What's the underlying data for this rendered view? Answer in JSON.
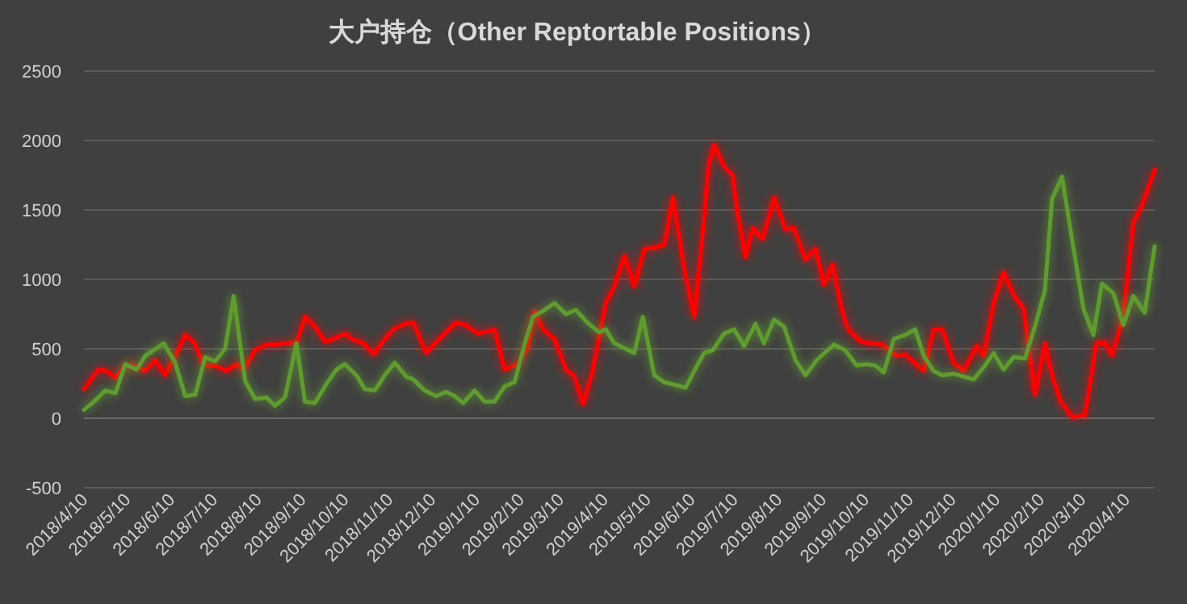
{
  "chart_data": {
    "type": "line",
    "title": "大户持仓（Other Reptortable Positions）",
    "series": [
      {
        "color": "#ff0000",
        "x": [
          "2018-04-10",
          "2018-04-20",
          "2018-04-26",
          "2018-05-02",
          "2018-05-09",
          "2018-05-15",
          "2018-05-23",
          "2018-05-30",
          "2018-06-06",
          "2018-06-13",
          "2018-06-20",
          "2018-06-26",
          "2018-07-03",
          "2018-07-11",
          "2018-07-19",
          "2018-07-26",
          "2018-07-31",
          "2018-08-08",
          "2018-08-16",
          "2018-08-22",
          "2018-08-29",
          "2018-09-06",
          "2018-09-12",
          "2018-09-19",
          "2018-09-26",
          "2018-10-02",
          "2018-10-10",
          "2018-10-15",
          "2018-10-23",
          "2018-10-30",
          "2018-11-07",
          "2018-11-13",
          "2018-11-21",
          "2018-11-27",
          "2018-12-06",
          "2018-12-13",
          "2018-12-20",
          "2018-12-27",
          "2019-01-03",
          "2019-01-11",
          "2019-01-20",
          "2019-01-23",
          "2019-01-30",
          "2019-02-08",
          "2019-02-15",
          "2019-02-20",
          "2019-02-26",
          "2019-03-06",
          "2019-03-14",
          "2019-03-20",
          "2019-03-26",
          "2019-04-01",
          "2019-04-11",
          "2019-04-17",
          "2019-04-24",
          "2019-05-01",
          "2019-05-08",
          "2019-05-16",
          "2019-05-22",
          "2019-05-28",
          "2019-06-05",
          "2019-06-12",
          "2019-06-18",
          "2019-06-22",
          "2019-06-26",
          "2019-07-03",
          "2019-07-09",
          "2019-07-12",
          "2019-07-18",
          "2019-07-23",
          "2019-07-30",
          "2019-08-07",
          "2019-08-15",
          "2019-08-21",
          "2019-08-29",
          "2019-09-05",
          "2019-09-11",
          "2019-09-17",
          "2019-09-24",
          "2019-09-28",
          "2019-10-07",
          "2019-10-22",
          "2019-11-01",
          "2019-11-07",
          "2019-11-20",
          "2019-11-27",
          "2019-12-03",
          "2019-12-11",
          "2019-12-18",
          "2019-12-27",
          "2020-01-01",
          "2020-01-08",
          "2020-01-15",
          "2020-01-23",
          "2020-01-29",
          "2020-02-06",
          "2020-02-13",
          "2020-02-18",
          "2020-02-24",
          "2020-03-03",
          "2020-03-12",
          "2020-03-20",
          "2020-03-26",
          "2020-03-31",
          "2020-04-08",
          "2020-04-15",
          "2020-04-21",
          "2020-04-30"
        ],
        "values": [
          210,
          350,
          340,
          290,
          380,
          380,
          340,
          420,
          310,
          450,
          600,
          550,
          380,
          380,
          340,
          390,
          350,
          490,
          530,
          530,
          540,
          540,
          730,
          660,
          550,
          570,
          610,
          570,
          540,
          460,
          570,
          640,
          680,
          690,
          470,
          550,
          620,
          690,
          670,
          610,
          630,
          640,
          350,
          390,
          500,
          770,
          640,
          570,
          350,
          300,
          100,
          310,
          830,
          950,
          1170,
          950,
          1220,
          1230,
          1250,
          1590,
          1080,
          730,
          1340,
          1820,
          1970,
          1810,
          1750,
          1500,
          1160,
          1370,
          1290,
          1590,
          1360,
          1370,
          1140,
          1220,
          960,
          1110,
          760,
          640,
          550,
          530,
          450,
          460,
          340,
          640,
          640,
          400,
          340,
          520,
          450,
          830,
          1050,
          870,
          790,
          170,
          540,
          310,
          120,
          10,
          20,
          540,
          550,
          450,
          740,
          1410,
          1530,
          1790
        ]
      },
      {
        "color": "#5f9b2e",
        "x": [
          "2018-04-10",
          "2018-04-17",
          "2018-04-25",
          "2018-05-02",
          "2018-05-09",
          "2018-05-17",
          "2018-05-23",
          "2018-06-05",
          "2018-06-13",
          "2018-06-20",
          "2018-06-27",
          "2018-07-04",
          "2018-07-11",
          "2018-07-18",
          "2018-07-24",
          "2018-08-01",
          "2018-08-08",
          "2018-08-16",
          "2018-08-22",
          "2018-08-29",
          "2018-09-06",
          "2018-09-12",
          "2018-09-19",
          "2018-09-26",
          "2018-10-04",
          "2018-10-10",
          "2018-10-18",
          "2018-10-24",
          "2018-10-31",
          "2018-11-07",
          "2018-11-14",
          "2018-11-22",
          "2018-11-27",
          "2018-12-05",
          "2018-12-13",
          "2018-12-20",
          "2018-12-26",
          "2019-01-01",
          "2019-01-09",
          "2019-01-16",
          "2019-01-23",
          "2019-01-30",
          "2019-02-06",
          "2019-02-14",
          "2019-02-19",
          "2019-02-27",
          "2019-03-06",
          "2019-03-14",
          "2019-03-21",
          "2019-03-29",
          "2019-04-06",
          "2019-04-11",
          "2019-04-17",
          "2019-05-01",
          "2019-05-07",
          "2019-05-15",
          "2019-05-22",
          "2019-05-30",
          "2019-06-06",
          "2019-06-13",
          "2019-06-19",
          "2019-06-25",
          "2019-07-03",
          "2019-07-10",
          "2019-07-17",
          "2019-07-25",
          "2019-07-31",
          "2019-08-07",
          "2019-08-14",
          "2019-08-22",
          "2019-08-29",
          "2019-09-06",
          "2019-09-18",
          "2019-09-26",
          "2019-10-04",
          "2019-10-11",
          "2019-10-17",
          "2019-10-23",
          "2019-10-30",
          "2019-11-07",
          "2019-11-14",
          "2019-11-20",
          "2019-11-27",
          "2019-12-03",
          "2019-12-11",
          "2019-12-18",
          "2019-12-25",
          "2020-01-02",
          "2020-01-08",
          "2020-01-15",
          "2020-01-22",
          "2020-01-30",
          "2020-02-06",
          "2020-02-13",
          "2020-02-18",
          "2020-02-25",
          "2020-03-03",
          "2020-03-11",
          "2020-03-18",
          "2020-03-24",
          "2020-04-01",
          "2020-04-08",
          "2020-04-15",
          "2020-04-23",
          "2020-04-30"
        ],
        "values": [
          60,
          120,
          200,
          180,
          390,
          350,
          450,
          540,
          400,
          160,
          170,
          440,
          410,
          500,
          880,
          270,
          140,
          150,
          90,
          150,
          540,
          120,
          110,
          230,
          350,
          390,
          310,
          210,
          200,
          310,
          400,
          300,
          280,
          200,
          160,
          190,
          160,
          110,
          200,
          120,
          120,
          230,
          260,
          570,
          730,
          780,
          830,
          750,
          780,
          690,
          620,
          640,
          540,
          470,
          730,
          310,
          260,
          240,
          220,
          360,
          470,
          490,
          610,
          640,
          520,
          680,
          540,
          710,
          660,
          420,
          310,
          420,
          530,
          490,
          380,
          390,
          380,
          330,
          570,
          600,
          640,
          450,
          340,
          310,
          320,
          300,
          280,
          380,
          470,
          350,
          440,
          430,
          660,
          920,
          1580,
          1740,
          1290,
          790,
          600,
          970,
          900,
          670,
          880,
          760,
          1240
        ]
      }
    ],
    "xlim": [
      "2018-04-10",
      "2020-04-30"
    ],
    "xticks": [
      {
        "value": "2018-04-10",
        "label": "2018/4/10"
      },
      {
        "value": "2018-05-10",
        "label": "2018/5/10"
      },
      {
        "value": "2018-06-10",
        "label": "2018/6/10"
      },
      {
        "value": "2018-07-10",
        "label": "2018/7/10"
      },
      {
        "value": "2018-08-10",
        "label": "2018/8/10"
      },
      {
        "value": "2018-09-10",
        "label": "2018/9/10"
      },
      {
        "value": "2018-10-10",
        "label": "2018/10/10"
      },
      {
        "value": "2018-11-10",
        "label": "2018/11/10"
      },
      {
        "value": "2018-12-10",
        "label": "2018/12/10"
      },
      {
        "value": "2019-01-10",
        "label": "2019/1/10"
      },
      {
        "value": "2019-02-10",
        "label": "2019/2/10"
      },
      {
        "value": "2019-03-10",
        "label": "2019/3/10"
      },
      {
        "value": "2019-04-10",
        "label": "2019/4/10"
      },
      {
        "value": "2019-05-10",
        "label": "2019/5/10"
      },
      {
        "value": "2019-06-10",
        "label": "2019/6/10"
      },
      {
        "value": "2019-07-10",
        "label": "2019/7/10"
      },
      {
        "value": "2019-08-10",
        "label": "2019/8/10"
      },
      {
        "value": "2019-09-10",
        "label": "2019/9/10"
      },
      {
        "value": "2019-10-10",
        "label": "2019/10/10"
      },
      {
        "value": "2019-11-10",
        "label": "2019/11/10"
      },
      {
        "value": "2019-12-10",
        "label": "2019/12/10"
      },
      {
        "value": "2020-01-10",
        "label": "2020/1/10"
      },
      {
        "value": "2020-02-10",
        "label": "2020/2/10"
      },
      {
        "value": "2020-03-10",
        "label": "2020/3/10"
      },
      {
        "value": "2020-04-10",
        "label": "2020/4/10"
      }
    ],
    "ylim": [
      -500,
      2500
    ],
    "yticks": [
      -500,
      0,
      500,
      1000,
      1500,
      2000,
      2500
    ],
    "grid": "y"
  }
}
